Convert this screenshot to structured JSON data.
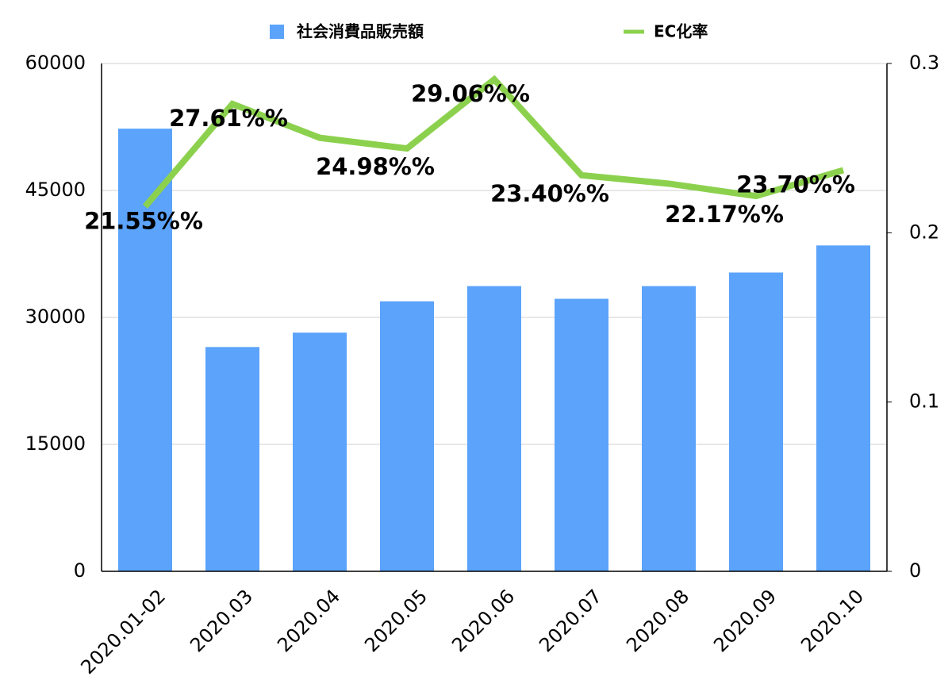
{
  "chart_data": {
    "type": "bar+line",
    "categories": [
      "2020.01-02",
      "2020.03",
      "2020.04",
      "2020.05",
      "2020.06",
      "2020.07",
      "2020.08",
      "2020.09",
      "2020.10"
    ],
    "series": [
      {
        "name": "社会消費品販売額",
        "type": "bar",
        "color": "#5ba3fb",
        "values": [
          52300,
          26500,
          28200,
          31900,
          33700,
          32200,
          33700,
          35300,
          38500
        ]
      },
      {
        "name": "EC化率",
        "type": "line",
        "axis": "y2",
        "color": "#8cd14e",
        "values": [
          0.2155,
          0.2761,
          0.2561,
          0.2498,
          0.2906,
          0.234,
          0.229,
          0.2217,
          0.237
        ],
        "value_labels": [
          "21.55%%",
          "27.61%%",
          null,
          "24.98%%",
          "29.06%%",
          "23.40%%",
          null,
          "22.17%%",
          "23.70%%"
        ]
      }
    ],
    "ylim": [
      0,
      60000
    ],
    "yticks": [
      0,
      15000,
      30000,
      45000,
      60000
    ],
    "y2lim": [
      0,
      0.3
    ],
    "y2ticks": [
      0,
      0.1,
      0.2,
      0.3
    ],
    "grid": true,
    "legend": "top"
  }
}
